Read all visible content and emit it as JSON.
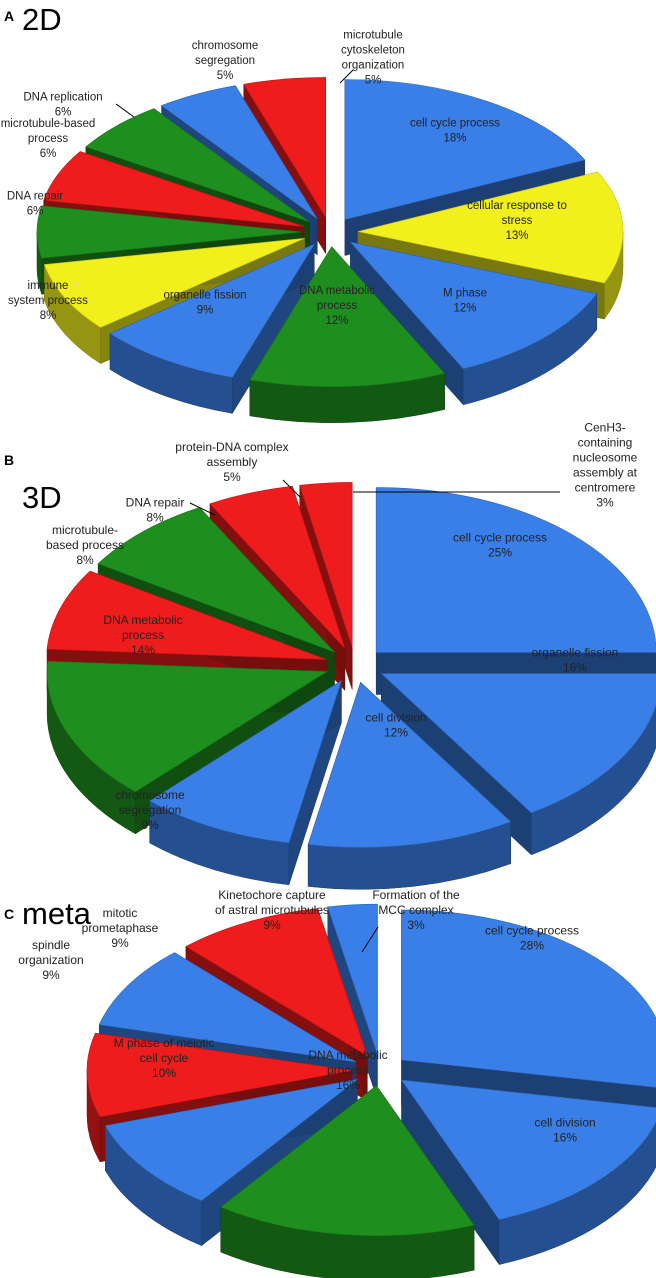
{
  "chart_data": [
    {
      "type": "pie",
      "panel_letter": "A",
      "title": "2D",
      "values": [
        18,
        13,
        12,
        12,
        9,
        8,
        6,
        6,
        6,
        5,
        5
      ],
      "slices": [
        {
          "label": [
            "cell cycle process",
            "18%"
          ],
          "value": 18,
          "color": "#3a7fe8"
        },
        {
          "label": [
            "cellular response to",
            "stress",
            "13%"
          ],
          "value": 13,
          "color": "#f2f01c"
        },
        {
          "label": [
            "M phase",
            "12%"
          ],
          "value": 12,
          "color": "#3a7fe8"
        },
        {
          "label": [
            "DNA metabolic",
            "process",
            "12%"
          ],
          "value": 12,
          "color": "#1e8f1e"
        },
        {
          "label": [
            "organelle fission",
            "9%"
          ],
          "value": 9,
          "color": "#3a7fe8"
        },
        {
          "label": [
            "immune",
            "system process",
            "8%"
          ],
          "value": 8,
          "color": "#f2f01c"
        },
        {
          "label": [
            "DNA repair",
            "6%"
          ],
          "value": 6,
          "color": "#1e8f1e"
        },
        {
          "label": [
            "microtubule-based",
            "process",
            "6%"
          ],
          "value": 6,
          "color": "#ee1c1c"
        },
        {
          "label": [
            "DNA replication",
            "6%"
          ],
          "value": 6,
          "color": "#1e8f1e"
        },
        {
          "label": [
            "chromosome",
            "segregation",
            "5%"
          ],
          "value": 5,
          "color": "#3a7fe8"
        },
        {
          "label": [
            "microtubule",
            "cytoskeleton",
            "organization",
            "5%"
          ],
          "value": 5,
          "color": "#ee1c1c"
        }
      ]
    },
    {
      "type": "pie",
      "panel_letter": "B",
      "title": "3D",
      "values": [
        25,
        16,
        12,
        9,
        14,
        8,
        8,
        5,
        3
      ],
      "slices": [
        {
          "label": [
            "cell cycle process",
            "25%"
          ],
          "value": 25,
          "color": "#3a7fe8"
        },
        {
          "label": [
            "organelle fission",
            "16%"
          ],
          "value": 16,
          "color": "#3a7fe8"
        },
        {
          "label": [
            "cell division",
            "12%"
          ],
          "value": 12,
          "color": "#3a7fe8"
        },
        {
          "label": [
            "chromosome",
            "segregation",
            "9%"
          ],
          "value": 9,
          "color": "#3a7fe8"
        },
        {
          "label": [
            "DNA metabolic",
            "process",
            "14%"
          ],
          "value": 14,
          "color": "#1e8f1e"
        },
        {
          "label": [
            "microtubule-",
            "based process",
            "8%"
          ],
          "value": 8,
          "color": "#ee1c1c"
        },
        {
          "label": [
            "DNA repair",
            "8%"
          ],
          "value": 8,
          "color": "#1e8f1e"
        },
        {
          "label": [
            "protein-DNA complex",
            "assembly",
            "5%"
          ],
          "value": 5,
          "color": "#ee1c1c"
        },
        {
          "label": [
            "CenH3-",
            "containing",
            "nucleosome",
            "assembly at",
            "centromere",
            "3%"
          ],
          "value": 3,
          "color": "#ee1c1c"
        }
      ]
    },
    {
      "type": "pie",
      "panel_letter": "C",
      "title": "meta",
      "values": [
        28,
        16,
        16,
        10,
        9,
        9,
        9,
        3
      ],
      "slices": [
        {
          "label": [
            "cell cycle process",
            "28%"
          ],
          "value": 28,
          "color": "#3a7fe8"
        },
        {
          "label": [
            "cell division",
            "16%"
          ],
          "value": 16,
          "color": "#3a7fe8"
        },
        {
          "label": [
            "DNA metabolic",
            "process",
            "16%"
          ],
          "value": 16,
          "color": "#1e8f1e"
        },
        {
          "label": [
            "M phase of meiotic",
            "cell cycle",
            "10%"
          ],
          "value": 10,
          "color": "#3a7fe8"
        },
        {
          "label": [
            "spindle",
            "organization",
            "9%"
          ],
          "value": 9,
          "color": "#ee1c1c"
        },
        {
          "label": [
            "mitotic",
            "prometaphase",
            "9%"
          ],
          "value": 9,
          "color": "#3a7fe8"
        },
        {
          "label": [
            "Kinetochore capture",
            "of astral microtubules",
            "9%"
          ],
          "value": 9,
          "color": "#ee1c1c"
        },
        {
          "label": [
            "Formation of the",
            "MCC complex",
            "3%"
          ],
          "value": 3,
          "color": "#3a7fe8"
        }
      ]
    }
  ]
}
